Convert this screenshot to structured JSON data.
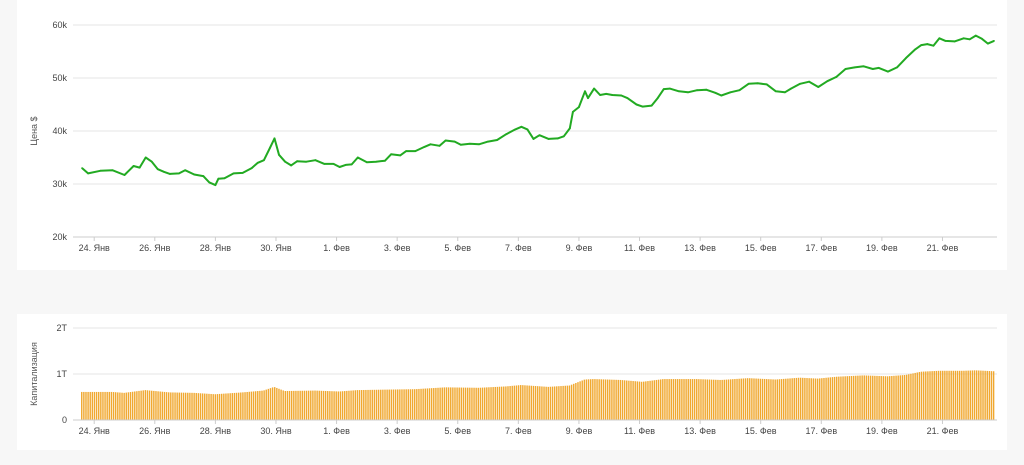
{
  "colors": {
    "price_line": "#22aa22",
    "cap_bar": "#f0a830",
    "grid": "#e6e6e6",
    "axis": "#cccccc"
  },
  "chart_data": [
    {
      "type": "line",
      "ylabel": "Цена $",
      "ylim": [
        20000,
        60000
      ],
      "y_ticks": [
        {
          "value": 20000,
          "label": "20k"
        },
        {
          "value": 30000,
          "label": "30k"
        },
        {
          "value": 40000,
          "label": "40k"
        },
        {
          "value": 50000,
          "label": "50k"
        },
        {
          "value": 60000,
          "label": "60k"
        }
      ],
      "x_ticks": [
        {
          "day": 1,
          "label": "24. Янв"
        },
        {
          "day": 3,
          "label": "26. Янв"
        },
        {
          "day": 5,
          "label": "28. Янв"
        },
        {
          "day": 7,
          "label": "30. Янв"
        },
        {
          "day": 9,
          "label": "1. Фев"
        },
        {
          "day": 11,
          "label": "3. Фев"
        },
        {
          "day": 13,
          "label": "5. Фев"
        },
        {
          "day": 15,
          "label": "7. Фев"
        },
        {
          "day": 17,
          "label": "9. Фев"
        },
        {
          "day": 19,
          "label": "11. Фев"
        },
        {
          "day": 21,
          "label": "13. Фев"
        },
        {
          "day": 23,
          "label": "15. Фев"
        },
        {
          "day": 25,
          "label": "17. Фев"
        },
        {
          "day": 27,
          "label": "19. Фев"
        },
        {
          "day": 29,
          "label": "21. Фев"
        }
      ],
      "xlim": [
        0.3,
        30.8
      ],
      "grid": true,
      "series": [
        {
          "points": [
            [
              0.6,
              33000
            ],
            [
              0.8,
              32000
            ],
            [
              1.2,
              32500
            ],
            [
              1.6,
              32600
            ],
            [
              2.0,
              31700
            ],
            [
              2.3,
              33400
            ],
            [
              2.5,
              33100
            ],
            [
              2.7,
              35000
            ],
            [
              2.9,
              34200
            ],
            [
              3.1,
              32800
            ],
            [
              3.3,
              32300
            ],
            [
              3.5,
              31900
            ],
            [
              3.8,
              32000
            ],
            [
              4.0,
              32600
            ],
            [
              4.3,
              31800
            ],
            [
              4.6,
              31500
            ],
            [
              4.8,
              30300
            ],
            [
              5.0,
              29800
            ],
            [
              5.1,
              31000
            ],
            [
              5.3,
              31100
            ],
            [
              5.6,
              32000
            ],
            [
              5.9,
              32100
            ],
            [
              6.2,
              33000
            ],
            [
              6.4,
              34000
            ],
            [
              6.6,
              34500
            ],
            [
              6.8,
              36800
            ],
            [
              6.95,
              38600
            ],
            [
              7.1,
              35500
            ],
            [
              7.3,
              34200
            ],
            [
              7.5,
              33500
            ],
            [
              7.7,
              34300
            ],
            [
              8.0,
              34200
            ],
            [
              8.3,
              34500
            ],
            [
              8.6,
              33800
            ],
            [
              8.9,
              33800
            ],
            [
              9.1,
              33200
            ],
            [
              9.3,
              33600
            ],
            [
              9.5,
              33700
            ],
            [
              9.7,
              35000
            ],
            [
              10.0,
              34100
            ],
            [
              10.3,
              34200
            ],
            [
              10.6,
              34400
            ],
            [
              10.8,
              35600
            ],
            [
              11.1,
              35400
            ],
            [
              11.3,
              36200
            ],
            [
              11.6,
              36200
            ],
            [
              11.9,
              37000
            ],
            [
              12.1,
              37500
            ],
            [
              12.4,
              37200
            ],
            [
              12.6,
              38200
            ],
            [
              12.9,
              38000
            ],
            [
              13.1,
              37400
            ],
            [
              13.4,
              37600
            ],
            [
              13.7,
              37500
            ],
            [
              14.0,
              38000
            ],
            [
              14.3,
              38300
            ],
            [
              14.6,
              39400
            ],
            [
              14.9,
              40300
            ],
            [
              15.1,
              40800
            ],
            [
              15.3,
              40300
            ],
            [
              15.5,
              38500
            ],
            [
              15.7,
              39200
            ],
            [
              16.0,
              38500
            ],
            [
              16.3,
              38600
            ],
            [
              16.5,
              39000
            ],
            [
              16.7,
              40500
            ],
            [
              16.8,
              43600
            ],
            [
              17.0,
              44500
            ],
            [
              17.2,
              47500
            ],
            [
              17.3,
              46200
            ],
            [
              17.5,
              48000
            ],
            [
              17.7,
              46800
            ],
            [
              17.9,
              47000
            ],
            [
              18.1,
              46800
            ],
            [
              18.4,
              46700
            ],
            [
              18.6,
              46200
            ],
            [
              18.9,
              45000
            ],
            [
              19.1,
              44600
            ],
            [
              19.4,
              44800
            ],
            [
              19.6,
              46200
            ],
            [
              19.8,
              47900
            ],
            [
              20.0,
              48000
            ],
            [
              20.3,
              47500
            ],
            [
              20.6,
              47300
            ],
            [
              20.9,
              47700
            ],
            [
              21.2,
              47800
            ],
            [
              21.5,
              47200
            ],
            [
              21.7,
              46700
            ],
            [
              22.0,
              47300
            ],
            [
              22.3,
              47700
            ],
            [
              22.6,
              48900
            ],
            [
              22.9,
              49000
            ],
            [
              23.2,
              48800
            ],
            [
              23.5,
              47500
            ],
            [
              23.8,
              47300
            ],
            [
              24.0,
              48000
            ],
            [
              24.3,
              48900
            ],
            [
              24.6,
              49300
            ],
            [
              24.9,
              48300
            ],
            [
              25.2,
              49400
            ],
            [
              25.5,
              50200
            ],
            [
              25.8,
              51700
            ],
            [
              26.1,
              52000
            ],
            [
              26.4,
              52200
            ],
            [
              26.7,
              51700
            ],
            [
              26.9,
              51900
            ],
            [
              27.2,
              51200
            ],
            [
              27.5,
              52000
            ],
            [
              27.8,
              53800
            ],
            [
              28.1,
              55400
            ],
            [
              28.3,
              56200
            ],
            [
              28.5,
              56400
            ],
            [
              28.7,
              56100
            ],
            [
              28.9,
              57500
            ],
            [
              29.1,
              57000
            ],
            [
              29.4,
              56900
            ],
            [
              29.7,
              57500
            ],
            [
              29.9,
              57300
            ],
            [
              30.1,
              58000
            ],
            [
              30.3,
              57400
            ],
            [
              30.5,
              56500
            ],
            [
              30.7,
              57000
            ]
          ]
        }
      ]
    },
    {
      "type": "bar",
      "ylabel": "Капитализация",
      "ylim": [
        0,
        2
      ],
      "y_ticks": [
        {
          "value": 0,
          "label": "0"
        },
        {
          "value": 1,
          "label": "1T"
        },
        {
          "value": 2,
          "label": "2T"
        }
      ],
      "x_ticks": [
        {
          "day": 1,
          "label": "24. Янв"
        },
        {
          "day": 3,
          "label": "26. Янв"
        },
        {
          "day": 5,
          "label": "28. Янв"
        },
        {
          "day": 7,
          "label": "30. Янв"
        },
        {
          "day": 9,
          "label": "1. Фев"
        },
        {
          "day": 11,
          "label": "3. Фев"
        },
        {
          "day": 13,
          "label": "5. Фев"
        },
        {
          "day": 15,
          "label": "7. Фев"
        },
        {
          "day": 17,
          "label": "9. Фев"
        },
        {
          "day": 19,
          "label": "11. Фев"
        },
        {
          "day": 21,
          "label": "13. Фев"
        },
        {
          "day": 23,
          "label": "15. Фев"
        },
        {
          "day": 25,
          "label": "17. Фев"
        },
        {
          "day": 27,
          "label": "19. Фев"
        },
        {
          "day": 29,
          "label": "21. Фев"
        }
      ],
      "xlim": [
        0.3,
        30.8
      ],
      "grid": true,
      "unit": "T",
      "series": [
        {
          "points": [
            [
              0.6,
              0.61
            ],
            [
              1.6,
              0.61
            ],
            [
              2.0,
              0.59
            ],
            [
              2.7,
              0.65
            ],
            [
              3.5,
              0.6
            ],
            [
              4.3,
              0.59
            ],
            [
              5.0,
              0.56
            ],
            [
              5.9,
              0.6
            ],
            [
              6.6,
              0.64
            ],
            [
              6.95,
              0.72
            ],
            [
              7.3,
              0.63
            ],
            [
              8.3,
              0.64
            ],
            [
              9.1,
              0.62
            ],
            [
              9.7,
              0.65
            ],
            [
              10.6,
              0.66
            ],
            [
              11.6,
              0.67
            ],
            [
              12.6,
              0.71
            ],
            [
              13.7,
              0.7
            ],
            [
              14.6,
              0.73
            ],
            [
              15.1,
              0.76
            ],
            [
              16.0,
              0.72
            ],
            [
              16.7,
              0.75
            ],
            [
              17.2,
              0.88
            ],
            [
              17.5,
              0.89
            ],
            [
              18.4,
              0.87
            ],
            [
              19.1,
              0.83
            ],
            [
              19.8,
              0.89
            ],
            [
              20.9,
              0.89
            ],
            [
              21.7,
              0.87
            ],
            [
              22.6,
              0.91
            ],
            [
              23.5,
              0.88
            ],
            [
              24.3,
              0.92
            ],
            [
              24.9,
              0.9
            ],
            [
              25.5,
              0.94
            ],
            [
              26.4,
              0.97
            ],
            [
              27.2,
              0.95
            ],
            [
              27.8,
              0.98
            ],
            [
              28.3,
              1.05
            ],
            [
              28.9,
              1.07
            ],
            [
              29.7,
              1.07
            ],
            [
              30.1,
              1.08
            ],
            [
              30.7,
              1.06
            ]
          ]
        }
      ]
    }
  ]
}
